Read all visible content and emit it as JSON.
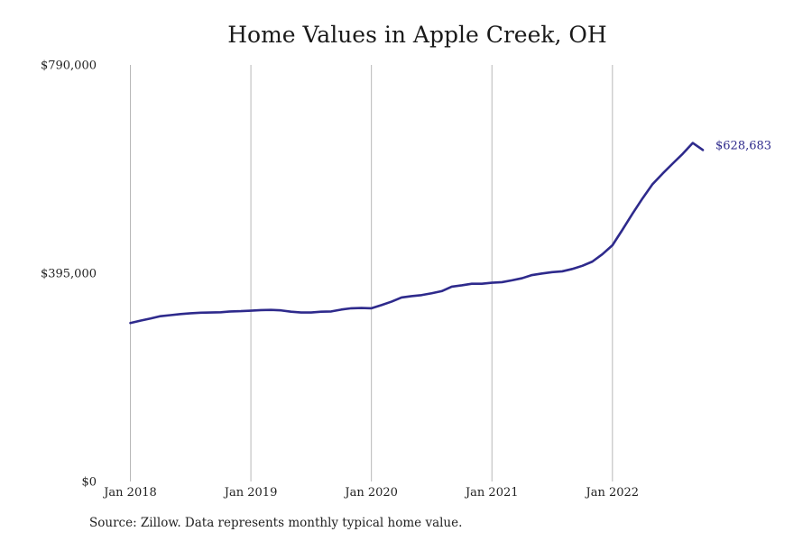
{
  "title": "Home Values in Apple Creek, OH",
  "source": "Source: Zillow. Data represents monthly typical home value.",
  "chart_data": {
    "type": "line",
    "title": "Home Values in Apple Creek, OH",
    "xlabel": "",
    "ylabel": "",
    "xlim": [
      "2018-01",
      "2022-10"
    ],
    "ylim": [
      0,
      790000
    ],
    "y_ticks": [
      0,
      395000,
      790000
    ],
    "y_tick_labels": [
      "$0",
      "$395,000",
      "$790,000"
    ],
    "x_ticks": [
      "2018-01",
      "2019-01",
      "2020-01",
      "2021-01",
      "2022-01"
    ],
    "x_tick_labels": [
      "Jan 2018",
      "Jan 2019",
      "Jan 2020",
      "Jan 2021",
      "Jan 2022"
    ],
    "grid": {
      "vertical": true,
      "horizontal": false
    },
    "legend": "none",
    "series": [
      {
        "color": "#2e2a8c",
        "x": [
          "2018-01",
          "2018-02",
          "2018-03",
          "2018-04",
          "2018-05",
          "2018-06",
          "2018-07",
          "2018-08",
          "2018-09",
          "2018-10",
          "2018-11",
          "2018-12",
          "2019-01",
          "2019-02",
          "2019-03",
          "2019-04",
          "2019-05",
          "2019-06",
          "2019-07",
          "2019-08",
          "2019-09",
          "2019-10",
          "2019-11",
          "2019-12",
          "2020-01",
          "2020-02",
          "2020-03",
          "2020-04",
          "2020-05",
          "2020-06",
          "2020-07",
          "2020-08",
          "2020-09",
          "2020-10",
          "2020-11",
          "2020-12",
          "2021-01",
          "2021-02",
          "2021-03",
          "2021-04",
          "2021-05",
          "2021-06",
          "2021-07",
          "2021-08",
          "2021-09",
          "2021-10",
          "2021-11",
          "2021-12",
          "2022-01",
          "2022-02",
          "2022-03",
          "2022-04",
          "2022-05",
          "2022-06",
          "2022-07",
          "2022-08",
          "2022-09",
          "2022-10"
        ],
        "values": [
          300500,
          305000,
          309000,
          313500,
          315500,
          317500,
          319000,
          320000,
          320500,
          321000,
          322500,
          323000,
          324000,
          325000,
          325500,
          324500,
          322000,
          320500,
          320500,
          322000,
          322500,
          326000,
          328500,
          329000,
          328500,
          334500,
          341000,
          349000,
          351500,
          353500,
          357000,
          361000,
          369500,
          372000,
          375000,
          375000,
          377000,
          378000,
          381500,
          385500,
          391500,
          394500,
          397000,
          398500,
          403000,
          409000,
          417000,
          431000,
          448000,
          477500,
          508000,
          537000,
          564000,
          584000,
          603000,
          621500,
          642000,
          628683
        ],
        "end_label": "$628,683"
      }
    ]
  }
}
